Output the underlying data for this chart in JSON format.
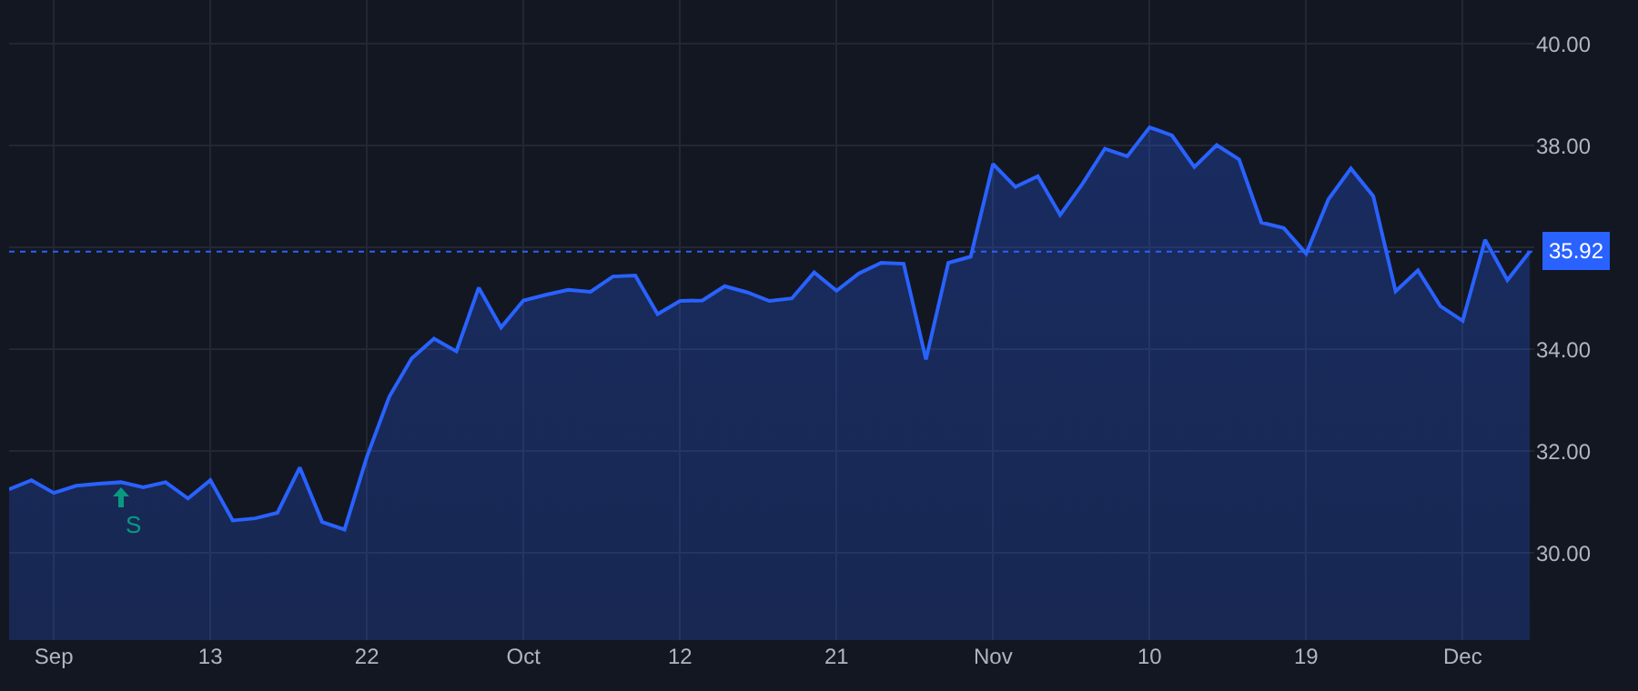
{
  "chart_data": {
    "type": "area",
    "categories": [
      null,
      null,
      "Sep",
      null,
      null,
      null,
      null,
      null,
      null,
      "13",
      null,
      null,
      null,
      null,
      null,
      null,
      "22",
      null,
      null,
      null,
      null,
      null,
      null,
      "Oct",
      null,
      null,
      null,
      null,
      null,
      null,
      "12",
      null,
      null,
      null,
      null,
      null,
      null,
      "21",
      null,
      null,
      null,
      null,
      null,
      null,
      "Nov",
      null,
      null,
      null,
      null,
      null,
      null,
      "10",
      null,
      null,
      null,
      null,
      null,
      null,
      "19",
      null,
      null,
      null,
      null,
      null,
      null,
      "Dec",
      null,
      null,
      null
    ],
    "series": [
      {
        "color": "#2962ff",
        "values": [
          31.25,
          31.43,
          31.18,
          31.32,
          31.36,
          31.39,
          31.29,
          31.39,
          31.07,
          31.43,
          30.64,
          30.68,
          30.79,
          31.68,
          30.61,
          30.46,
          31.89,
          33.07,
          33.82,
          34.21,
          33.96,
          35.21,
          34.43,
          34.96,
          35.07,
          35.17,
          35.13,
          35.43,
          35.45,
          34.69,
          34.95,
          34.96,
          35.24,
          35.12,
          34.95,
          35.0,
          35.51,
          35.15,
          35.49,
          35.7,
          35.68,
          33.8,
          35.7,
          35.82,
          37.64,
          37.19,
          37.4,
          36.64,
          37.25,
          37.94,
          37.79,
          38.36,
          38.2,
          37.58,
          38.01,
          37.73,
          36.49,
          36.38,
          35.88,
          36.95,
          37.55,
          37.01,
          35.14,
          35.55,
          34.85,
          34.56,
          36.15,
          35.36,
          35.92
        ]
      }
    ],
    "ylim": [
      28.29,
      40.86
    ],
    "yticks": [
      {
        "value": 30,
        "label": "30.00"
      },
      {
        "value": 32,
        "label": "32.00"
      },
      {
        "value": 34,
        "label": "34.00"
      },
      {
        "value": 36,
        "label": null
      },
      {
        "value": 38,
        "label": "38.00"
      },
      {
        "value": 40,
        "label": "40.00"
      }
    ],
    "ref_lines": [
      {
        "axis": "y",
        "value": 35.92,
        "label": "35.92",
        "color": "#2962ff",
        "line_style": "dotted"
      }
    ],
    "annotations": [
      "S"
    ],
    "grid": true,
    "legend": false,
    "marker": "none",
    "line_style": "solid"
  }
}
